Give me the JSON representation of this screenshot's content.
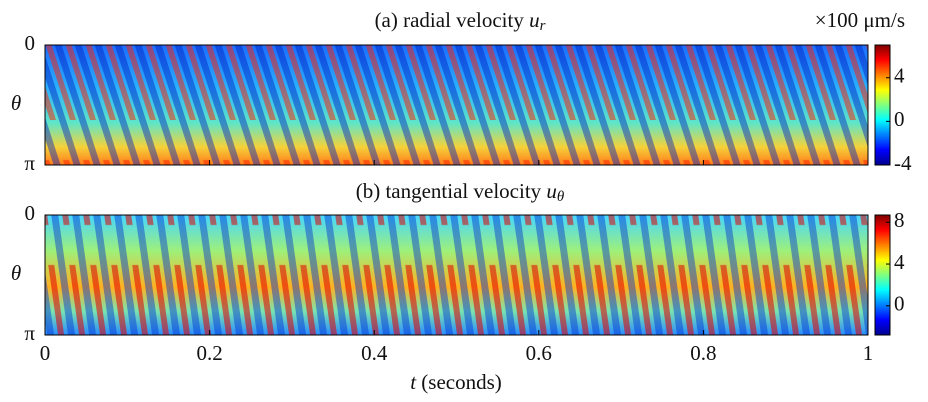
{
  "chart_data": [
    {
      "type": "heatmap",
      "title": "(a) radial velocity ",
      "title_symbol": "u",
      "title_subscript": "r",
      "colorbar_label": "×100 μm/s",
      "xlim": [
        0,
        1
      ],
      "xticks": [
        0,
        0.2,
        0.4,
        0.6,
        0.8,
        1
      ],
      "ylabel": "θ",
      "ylim": [
        0,
        3.1416
      ],
      "yticks": [
        0,
        {
          "value": 3.1416,
          "label": "π"
        }
      ],
      "clim": [
        -4,
        7
      ],
      "cticks": [
        -4,
        0,
        4
      ]
    },
    {
      "type": "heatmap",
      "title": "(b) tangential velocity ",
      "title_symbol": "u",
      "title_subscript": "θ",
      "xlabel_symbol": "t",
      "xlabel": " (seconds)",
      "xlim": [
        0,
        1
      ],
      "xticks": [
        0,
        0.2,
        0.4,
        0.6,
        0.8,
        1
      ],
      "ylabel": "θ",
      "ylim": [
        0,
        3.1416
      ],
      "yticks": [
        0,
        {
          "value": 3.1416,
          "label": "π"
        }
      ],
      "clim": [
        -2.8,
        8.7
      ],
      "cticks": [
        0,
        4,
        8
      ]
    }
  ]
}
